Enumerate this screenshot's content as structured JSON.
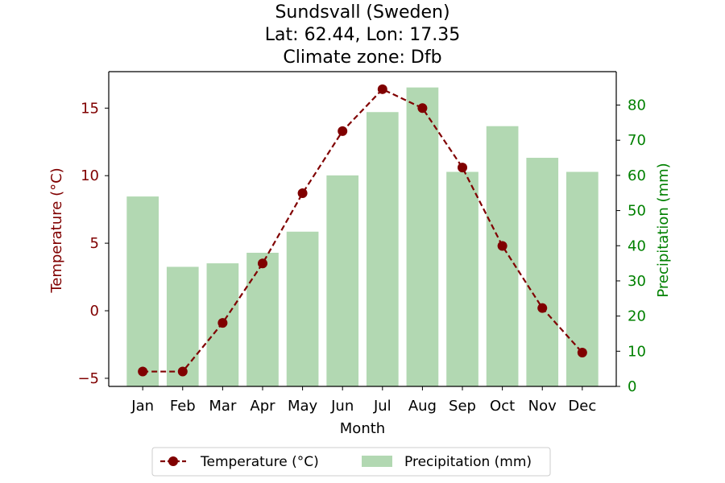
{
  "chart_data": {
    "type": "bar+line",
    "title": [
      "Sundsvall (Sweden)",
      "Lat: 62.44, Lon: 17.35",
      "Climate zone: Dfb"
    ],
    "xlabel": "Month",
    "categories": [
      "Jan",
      "Feb",
      "Mar",
      "Apr",
      "May",
      "Jun",
      "Jul",
      "Aug",
      "Sep",
      "Oct",
      "Nov",
      "Dec"
    ],
    "series": [
      {
        "name": "Temperature (°C)",
        "type": "line",
        "axis": "left",
        "color": "#800000",
        "values": [
          -4.5,
          -4.5,
          -0.9,
          3.5,
          8.7,
          13.3,
          16.4,
          15.0,
          10.6,
          4.8,
          0.2,
          -3.1
        ]
      },
      {
        "name": "Precipitation (mm)",
        "type": "bar",
        "axis": "right",
        "color": "#b2d8b2",
        "values": [
          54,
          34,
          35,
          38,
          44,
          60,
          78,
          85,
          61,
          74,
          65,
          61
        ]
      }
    ],
    "y_left": {
      "label": "Temperature (°C)",
      "color": "#800000",
      "range": [
        -5.6,
        17.7
      ],
      "ticks": [
        -5,
        0,
        5,
        10,
        15
      ],
      "tick_labels": [
        "−5",
        "0",
        "5",
        "10",
        "15"
      ]
    },
    "y_right": {
      "label": "Precipitation (mm)",
      "color": "#008000",
      "range": [
        0,
        89.5
      ],
      "ticks": [
        0,
        10,
        20,
        30,
        40,
        50,
        60,
        70,
        80
      ],
      "tick_labels": [
        "0",
        "10",
        "20",
        "30",
        "40",
        "50",
        "60",
        "70",
        "80"
      ]
    },
    "grid": false,
    "legend": {
      "placement": "bottom-center",
      "entries": [
        "Temperature (°C)",
        "Precipitation (mm)"
      ]
    }
  }
}
